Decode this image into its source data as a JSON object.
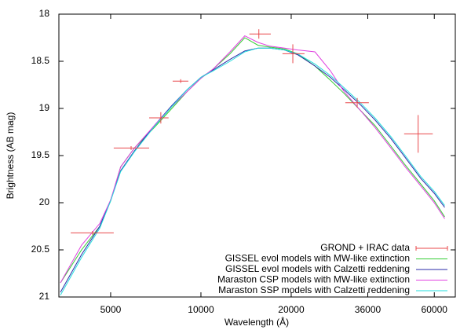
{
  "chart_data": {
    "type": "line",
    "x_label": "Wavelength (Å)",
    "y_label": "Brightness (AB mag)",
    "x_log": true,
    "y_inverted": true,
    "grid": false,
    "legend": "bottom-right",
    "xlim": [
      3360,
      70500
    ],
    "xticks": [
      5000,
      10000,
      20000,
      36000,
      60000
    ],
    "ylim": [
      18,
      21
    ],
    "yticks": [
      18,
      18.5,
      19,
      19.5,
      20,
      20.5,
      21
    ],
    "points": {
      "name": "GROND + IRAC data",
      "color": "#e8484b",
      "x": [
        4350,
        5850,
        7350,
        8560,
        15600,
        20250,
        33200,
        53000
      ],
      "x_low": [
        3680,
        5120,
        6720,
        8050,
        14500,
        18700,
        30300,
        47600
      ],
      "x_high": [
        5120,
        6720,
        7800,
        9080,
        17100,
        22150,
        36300,
        59300
      ],
      "y": [
        20.32,
        19.42,
        19.1,
        18.71,
        18.21,
        18.42,
        18.94,
        19.27
      ],
      "yerr": [
        0.02,
        0.02,
        0.06,
        0.02,
        0.05,
        0.1,
        0.05,
        0.2
      ]
    },
    "x": [
      3400,
      4000,
      4600,
      5000,
      5400,
      6000,
      7000,
      8000,
      9000,
      10000,
      11000,
      12500,
      14000,
      15500,
      17000,
      19000,
      21000,
      24000,
      27000,
      30000,
      34000,
      38000,
      43000,
      48000,
      54000,
      60000,
      65000
    ],
    "series": [
      {
        "name": "GISSEL evol models with MW-like extinction",
        "color": "#33cc33",
        "values": [
          20.85,
          20.5,
          20.25,
          19.98,
          19.62,
          19.42,
          19.2,
          19.0,
          18.82,
          18.68,
          18.58,
          18.42,
          18.25,
          18.33,
          18.35,
          18.37,
          18.42,
          18.55,
          18.7,
          18.84,
          19.02,
          19.18,
          19.4,
          19.6,
          19.8,
          19.98,
          20.15
        ]
      },
      {
        "name": "GISSEL evol models with Calzetti reddening",
        "color": "#2a2aa8",
        "values": [
          20.95,
          20.55,
          20.25,
          19.97,
          19.66,
          19.45,
          19.18,
          18.97,
          18.8,
          18.67,
          18.59,
          18.48,
          18.39,
          18.36,
          18.36,
          18.38,
          18.43,
          18.55,
          18.67,
          18.8,
          18.96,
          19.12,
          19.32,
          19.52,
          19.74,
          19.9,
          20.05
        ]
      },
      {
        "name": "Maraston CSP models with MW-like extinction",
        "color": "#e040e0",
        "values": [
          20.85,
          20.45,
          20.22,
          19.97,
          19.62,
          19.42,
          19.18,
          18.98,
          18.82,
          18.68,
          18.58,
          18.4,
          18.23,
          18.3,
          18.34,
          18.36,
          18.38,
          18.4,
          18.6,
          18.82,
          19.02,
          19.2,
          19.42,
          19.62,
          19.82,
          20.0,
          20.17
        ]
      },
      {
        "name": "Maraston SSP models with Calzetti reddening",
        "color": "#22dddd",
        "values": [
          20.98,
          20.58,
          20.27,
          19.98,
          19.67,
          19.46,
          19.19,
          18.98,
          18.8,
          18.67,
          18.6,
          18.5,
          18.4,
          18.36,
          18.36,
          18.38,
          18.42,
          18.53,
          18.65,
          18.78,
          18.94,
          19.1,
          19.3,
          19.5,
          19.72,
          19.88,
          20.03
        ]
      }
    ]
  }
}
